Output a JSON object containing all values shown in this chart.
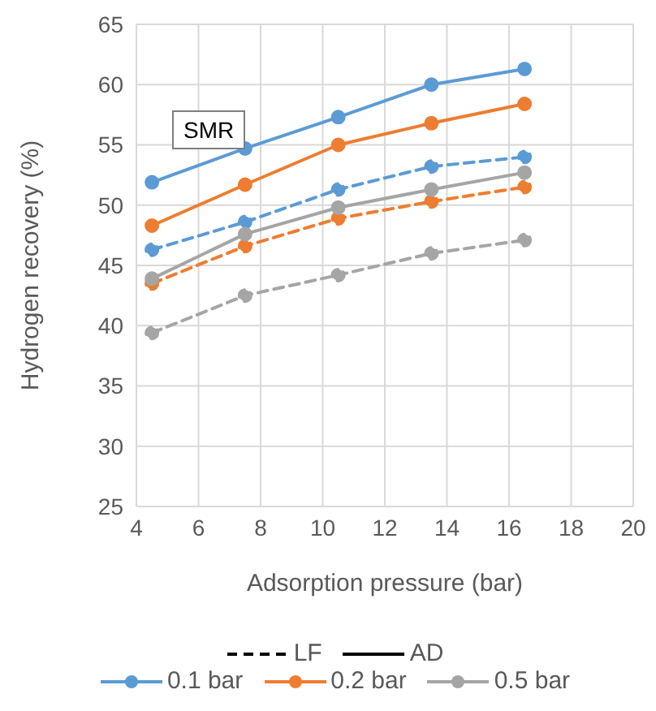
{
  "chart_data": {
    "type": "line",
    "xlabel": "Adsorption pressure (bar)",
    "ylabel": "Hydrogen recovery (%)",
    "annotations": [
      "SMR"
    ],
    "x": [
      4.5,
      7.5,
      10.5,
      13.5,
      16.5
    ],
    "xlim": [
      4,
      20
    ],
    "xticks": [
      4,
      6,
      8,
      10,
      12,
      14,
      16,
      18,
      20
    ],
    "ylim": [
      25,
      65
    ],
    "yticks": [
      25,
      30,
      35,
      40,
      45,
      50,
      55,
      60,
      65
    ],
    "grid": true,
    "legend": "bottom",
    "marker": "circle",
    "series": [
      {
        "name": "LF",
        "color": "#000000",
        "line_style": "dashed",
        "marker": "none",
        "values": [
          null,
          null,
          null,
          null,
          null
        ]
      },
      {
        "name": "AD",
        "color": "#000000",
        "line_style": "solid",
        "marker": "none",
        "values": [
          null,
          null,
          null,
          null,
          null
        ]
      },
      {
        "name": "0.1 bar",
        "color": "#5b9bd5",
        "line_style": "solid",
        "values": [
          51.9,
          54.7,
          57.3,
          60.0,
          61.3
        ]
      },
      {
        "name": "0.2 bar",
        "color": "#ed7d31",
        "line_style": "solid",
        "values": [
          48.3,
          51.7,
          55.0,
          56.8,
          58.4
        ]
      },
      {
        "name": "0.5 bar",
        "color": "#a5a5a5",
        "line_style": "solid",
        "values": [
          43.9,
          47.6,
          49.8,
          51.3,
          52.7
        ]
      },
      {
        "color": "#5b9bd5",
        "line_style": "dashed",
        "values": [
          46.3,
          48.6,
          51.3,
          53.2,
          54.0
        ]
      },
      {
        "color": "#ed7d31",
        "line_style": "dashed",
        "values": [
          43.5,
          46.6,
          48.9,
          50.3,
          51.5
        ]
      },
      {
        "color": "#a5a5a5",
        "line_style": "dashed",
        "values": [
          39.4,
          42.5,
          44.2,
          46.0,
          47.1
        ]
      }
    ]
  }
}
